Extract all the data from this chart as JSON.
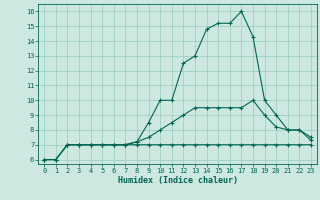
{
  "xlabel": "Humidex (Indice chaleur)",
  "bg_color": "#cce8e0",
  "grid_color": "#99ccbb",
  "line_color": "#006655",
  "x_ticks": [
    0,
    1,
    2,
    3,
    4,
    5,
    6,
    7,
    8,
    9,
    10,
    11,
    12,
    13,
    14,
    15,
    16,
    17,
    18,
    19,
    20,
    21,
    22,
    23
  ],
  "y_ticks": [
    6,
    7,
    8,
    9,
    10,
    11,
    12,
    13,
    14,
    15,
    16
  ],
  "xlim": [
    -0.5,
    23.5
  ],
  "ylim": [
    5.7,
    16.5
  ],
  "series": {
    "line1": {
      "x": [
        0,
        1,
        2,
        3,
        4,
        5,
        6,
        7,
        8,
        9,
        10,
        11,
        12,
        13,
        14,
        15,
        16,
        17,
        18,
        19,
        20,
        21,
        22,
        23
      ],
      "y": [
        6.0,
        6.0,
        7.0,
        7.0,
        7.0,
        7.0,
        7.0,
        7.0,
        7.0,
        7.0,
        7.0,
        7.0,
        7.0,
        7.0,
        7.0,
        7.0,
        7.0,
        7.0,
        7.0,
        7.0,
        7.0,
        7.0,
        7.0,
        7.0
      ]
    },
    "line2": {
      "x": [
        0,
        1,
        2,
        3,
        4,
        5,
        6,
        7,
        8,
        9,
        10,
        11,
        12,
        13,
        14,
        15,
        16,
        17,
        18,
        19,
        20,
        21,
        22,
        23
      ],
      "y": [
        6.0,
        6.0,
        7.0,
        7.0,
        7.0,
        7.0,
        7.0,
        7.0,
        7.2,
        7.5,
        8.0,
        8.5,
        9.0,
        9.5,
        9.5,
        9.5,
        9.5,
        9.5,
        10.0,
        9.0,
        8.2,
        8.0,
        8.0,
        7.5
      ]
    },
    "line3": {
      "x": [
        0,
        1,
        2,
        3,
        4,
        5,
        6,
        7,
        8,
        9,
        10,
        11,
        12,
        13,
        14,
        15,
        16,
        17,
        18,
        19,
        20,
        21,
        22,
        23
      ],
      "y": [
        6.0,
        6.0,
        7.0,
        7.0,
        7.0,
        7.0,
        7.0,
        7.0,
        7.2,
        8.5,
        10.0,
        10.0,
        12.5,
        13.0,
        14.8,
        15.2,
        15.2,
        16.0,
        14.3,
        10.0,
        9.0,
        8.0,
        8.0,
        7.3
      ]
    }
  }
}
